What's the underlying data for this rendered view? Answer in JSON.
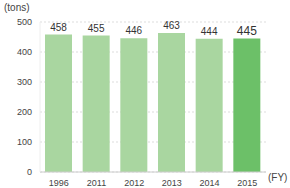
{
  "chart_data": {
    "type": "bar",
    "y_label": "(tons)",
    "x_label": "(FY)",
    "categories": [
      "1996",
      "2011",
      "2012",
      "2013",
      "2014",
      "2015"
    ],
    "values": [
      458,
      455,
      446,
      463,
      444,
      445
    ],
    "colors": [
      "#a9d6a0",
      "#a9d6a0",
      "#a9d6a0",
      "#a9d6a0",
      "#a9d6a0",
      "#6cc068"
    ],
    "ylim": [
      0,
      500
    ],
    "yticks": [
      0,
      100,
      200,
      300,
      400,
      500
    ],
    "grid": true,
    "data_labels": true
  }
}
